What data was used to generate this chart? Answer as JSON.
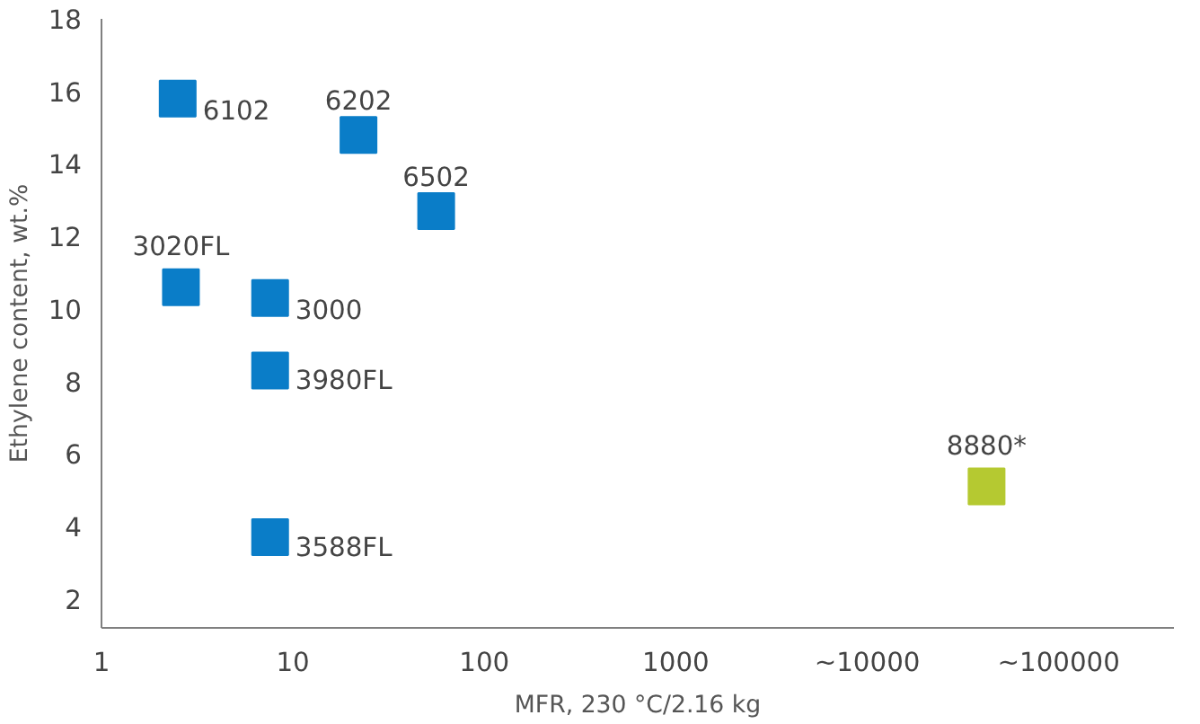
{
  "chart_data": {
    "type": "scatter",
    "xlabel": "MFR, 230 °C/2.16 kg",
    "ylabel": "Ethylene content, wt.%",
    "log": "x",
    "marker": "square",
    "grid": false,
    "xlim": [
      1,
      400000
    ],
    "xticks": [
      1,
      10,
      100,
      1000,
      {
        "value": 10000,
        "label": "~10000"
      },
      {
        "value": 100000,
        "label": "~100000"
      }
    ],
    "ylim": [
      1.2,
      18
    ],
    "yticks": [
      2,
      4,
      6,
      8,
      10,
      12,
      14,
      16,
      18
    ],
    "series": [
      {
        "color": "#0a7dc8",
        "x": [
          2.5,
          22,
          56,
          2.6,
          7.6,
          7.6,
          7.6
        ],
        "values": [
          15.8,
          14.8,
          12.7,
          10.6,
          10.3,
          8.3,
          3.7
        ]
      },
      {
        "color": "#b5c931",
        "x": [
          42000
        ],
        "values": [
          5.1
        ]
      }
    ],
    "annotations": [
      {
        "text": "6102",
        "x": 2.5,
        "y": 15.8
      },
      {
        "text": "6202",
        "x": 22,
        "y": 14.8
      },
      {
        "text": "6502",
        "x": 56,
        "y": 12.7
      },
      {
        "text": "3020FL",
        "x": 2.6,
        "y": 10.6
      },
      {
        "text": "3000",
        "x": 7.6,
        "y": 10.3
      },
      {
        "text": "3980FL",
        "x": 7.6,
        "y": 8.3
      },
      {
        "text": "3588FL",
        "x": 7.6,
        "y": 3.7
      },
      {
        "text": "8880*",
        "x": 42000,
        "y": 5.1
      }
    ]
  }
}
